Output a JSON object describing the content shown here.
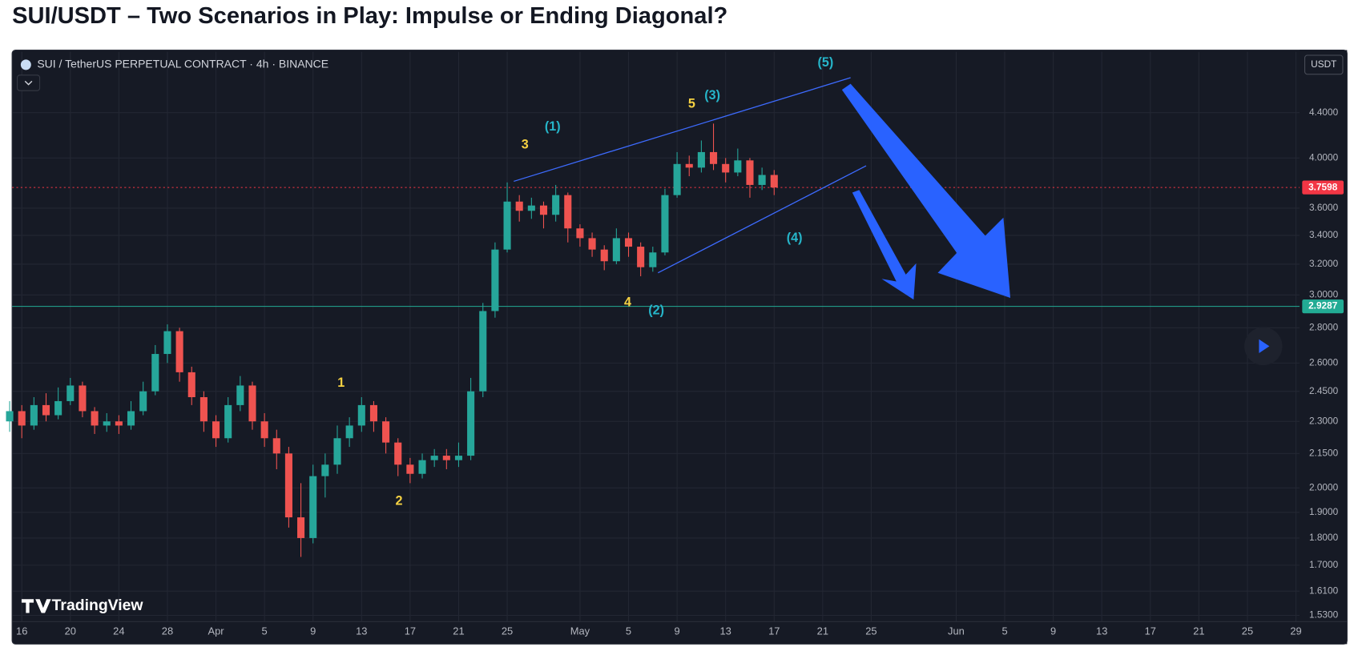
{
  "chart_data": {
    "type": "candlestick",
    "title": "SUI/USDT – Two Scenarios in Play: Impulse or Ending Diagonal?",
    "symbol": "SUI / TetherUS PERPETUAL CONTRACT · 4h · BINANCE",
    "quote": "USDT",
    "watermark": "TradingView",
    "log_scale": true,
    "grid": true,
    "up_color": "#26a69a",
    "down_color": "#ef5350",
    "xlim": [
      0.2,
      106.3
    ],
    "xticks": [
      {
        "value": 1,
        "label": "16"
      },
      {
        "value": 5,
        "label": "20"
      },
      {
        "value": 9,
        "label": "24"
      },
      {
        "value": 13,
        "label": "28"
      },
      {
        "value": 17,
        "label": "Apr"
      },
      {
        "value": 21,
        "label": "5"
      },
      {
        "value": 25,
        "label": "9"
      },
      {
        "value": 29,
        "label": "13"
      },
      {
        "value": 33,
        "label": "17"
      },
      {
        "value": 37,
        "label": "21"
      },
      {
        "value": 41,
        "label": "25"
      },
      {
        "value": 47,
        "label": "May"
      },
      {
        "value": 51,
        "label": "5"
      },
      {
        "value": 55,
        "label": "9"
      },
      {
        "value": 59,
        "label": "13"
      },
      {
        "value": 63,
        "label": "17"
      },
      {
        "value": 67,
        "label": "21"
      },
      {
        "value": 71,
        "label": "25"
      },
      {
        "value": 78,
        "label": "Jun"
      },
      {
        "value": 82,
        "label": "5"
      },
      {
        "value": 86,
        "label": "9"
      },
      {
        "value": 90,
        "label": "13"
      },
      {
        "value": 94,
        "label": "17"
      },
      {
        "value": 98,
        "label": "21"
      },
      {
        "value": 102,
        "label": "25"
      },
      {
        "value": 106,
        "label": "29"
      }
    ],
    "ylim": [
      1.51,
      5.0
    ],
    "yticks": [
      {
        "value": 4.4,
        "label": "4.4000"
      },
      {
        "value": 4.0,
        "label": "4.0000"
      },
      {
        "value": 3.6,
        "label": "3.6000"
      },
      {
        "value": 3.4,
        "label": "3.4000"
      },
      {
        "value": 3.2,
        "label": "3.2000"
      },
      {
        "value": 3.0,
        "label": "3.0000"
      },
      {
        "value": 2.8,
        "label": "2.8000"
      },
      {
        "value": 2.6,
        "label": "2.6000"
      },
      {
        "value": 2.45,
        "label": "2.4500"
      },
      {
        "value": 2.3,
        "label": "2.3000"
      },
      {
        "value": 2.15,
        "label": "2.1500"
      },
      {
        "value": 2.0,
        "label": "2.0000"
      },
      {
        "value": 1.9,
        "label": "1.9000"
      },
      {
        "value": 1.8,
        "label": "1.8000"
      },
      {
        "value": 1.7,
        "label": "1.7000"
      },
      {
        "value": 1.61,
        "label": "1.6100"
      },
      {
        "value": 1.53,
        "label": "1.5300"
      }
    ],
    "price_lines": [
      {
        "value": 3.7598,
        "color": "#f23645",
        "style": "dotted"
      },
      {
        "value": 2.9287,
        "color": "#22ab94",
        "style": "solid"
      }
    ],
    "candles": [
      [
        2.3,
        2.4,
        2.25,
        2.35
      ],
      [
        2.35,
        2.38,
        2.22,
        2.28
      ],
      [
        2.28,
        2.42,
        2.26,
        2.38
      ],
      [
        2.38,
        2.44,
        2.3,
        2.33
      ],
      [
        2.33,
        2.47,
        2.31,
        2.4
      ],
      [
        2.4,
        2.52,
        2.38,
        2.48
      ],
      [
        2.48,
        2.5,
        2.32,
        2.35
      ],
      [
        2.35,
        2.37,
        2.24,
        2.28
      ],
      [
        2.28,
        2.34,
        2.25,
        2.3
      ],
      [
        2.3,
        2.33,
        2.24,
        2.28
      ],
      [
        2.28,
        2.4,
        2.26,
        2.35
      ],
      [
        2.35,
        2.5,
        2.33,
        2.45
      ],
      [
        2.45,
        2.7,
        2.43,
        2.65
      ],
      [
        2.65,
        2.82,
        2.6,
        2.78
      ],
      [
        2.78,
        2.8,
        2.5,
        2.55
      ],
      [
        2.55,
        2.58,
        2.38,
        2.42
      ],
      [
        2.42,
        2.45,
        2.25,
        2.3
      ],
      [
        2.3,
        2.33,
        2.18,
        2.22
      ],
      [
        2.22,
        2.42,
        2.2,
        2.38
      ],
      [
        2.38,
        2.53,
        2.35,
        2.48
      ],
      [
        2.48,
        2.5,
        2.26,
        2.3
      ],
      [
        2.3,
        2.34,
        2.18,
        2.22
      ],
      [
        2.22,
        2.26,
        2.08,
        2.15
      ],
      [
        2.15,
        2.18,
        1.84,
        1.88
      ],
      [
        1.88,
        2.02,
        1.73,
        1.8
      ],
      [
        1.8,
        2.1,
        1.78,
        2.05
      ],
      [
        2.05,
        2.15,
        1.96,
        2.1
      ],
      [
        2.1,
        2.28,
        2.06,
        2.22
      ],
      [
        2.22,
        2.32,
        2.18,
        2.28
      ],
      [
        2.28,
        2.42,
        2.25,
        2.38
      ],
      [
        2.38,
        2.4,
        2.25,
        2.3
      ],
      [
        2.3,
        2.32,
        2.15,
        2.2
      ],
      [
        2.2,
        2.22,
        2.05,
        2.1
      ],
      [
        2.1,
        2.13,
        2.02,
        2.06
      ],
      [
        2.06,
        2.15,
        2.04,
        2.12
      ],
      [
        2.12,
        2.17,
        2.09,
        2.14
      ],
      [
        2.14,
        2.17,
        2.08,
        2.12
      ],
      [
        2.12,
        2.2,
        2.09,
        2.14
      ],
      [
        2.14,
        2.52,
        2.12,
        2.45
      ],
      [
        2.45,
        2.95,
        2.42,
        2.9
      ],
      [
        2.9,
        3.35,
        2.86,
        3.3
      ],
      [
        3.3,
        3.8,
        3.28,
        3.65
      ],
      [
        3.65,
        3.7,
        3.5,
        3.58
      ],
      [
        3.58,
        3.68,
        3.52,
        3.62
      ],
      [
        3.62,
        3.65,
        3.45,
        3.55
      ],
      [
        3.55,
        3.78,
        3.5,
        3.7
      ],
      [
        3.7,
        3.72,
        3.35,
        3.45
      ],
      [
        3.45,
        3.48,
        3.32,
        3.38
      ],
      [
        3.38,
        3.42,
        3.25,
        3.3
      ],
      [
        3.3,
        3.33,
        3.16,
        3.22
      ],
      [
        3.22,
        3.45,
        3.2,
        3.38
      ],
      [
        3.38,
        3.42,
        3.25,
        3.32
      ],
      [
        3.32,
        3.35,
        3.12,
        3.18
      ],
      [
        3.18,
        3.32,
        3.15,
        3.28
      ],
      [
        3.28,
        3.75,
        3.26,
        3.7
      ],
      [
        3.7,
        4.05,
        3.68,
        3.95
      ],
      [
        3.95,
        4.02,
        3.85,
        3.92
      ],
      [
        3.92,
        4.15,
        3.88,
        4.05
      ],
      [
        4.05,
        4.3,
        3.9,
        3.95
      ],
      [
        3.95,
        4.0,
        3.8,
        3.88
      ],
      [
        3.88,
        4.08,
        3.85,
        3.98
      ],
      [
        3.98,
        4.0,
        3.68,
        3.78
      ],
      [
        3.78,
        3.92,
        3.74,
        3.86
      ],
      [
        3.86,
        3.9,
        3.7,
        3.76
      ]
    ],
    "annotations": [
      {
        "text": "(5)",
        "color": "#26b5c9"
      },
      {
        "text": "(3)",
        "color": "#26b5c9"
      },
      {
        "text": "5",
        "color": "#f5d142"
      },
      {
        "text": "(1)",
        "color": "#26b5c9"
      },
      {
        "text": "3",
        "color": "#f5d142"
      },
      {
        "text": "(4)",
        "color": "#26b5c9"
      },
      {
        "text": "4",
        "color": "#f5d142"
      },
      {
        "text": "(2)",
        "color": "#26b5c9"
      },
      {
        "text": "1",
        "color": "#f5d142"
      },
      {
        "text": "2",
        "color": "#f5d142"
      }
    ]
  }
}
